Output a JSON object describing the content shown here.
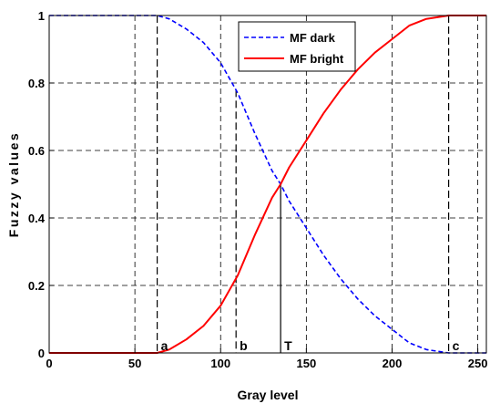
{
  "chart_data": {
    "type": "line",
    "title": "",
    "xlabel": "Gray level",
    "ylabel": "Fuzzy values",
    "xlim": [
      0,
      255
    ],
    "ylim": [
      0,
      1
    ],
    "xticks": [
      0,
      50,
      100,
      150,
      200,
      250
    ],
    "yticks": [
      0,
      0.2,
      0.4,
      0.6,
      0.8,
      1
    ],
    "ytick_labels": [
      "0",
      "0.2",
      "0.4",
      "0.6",
      "0.8",
      "1"
    ],
    "grid": true,
    "legend_position": "top-center",
    "series": [
      {
        "name": "MF dark",
        "color": "#0000ff",
        "style": "dashed",
        "x": [
          0,
          63,
          70,
          80,
          90,
          100,
          110,
          120,
          130,
          135,
          140,
          150,
          160,
          170,
          180,
          190,
          200,
          210,
          220,
          233,
          255
        ],
        "y": [
          1,
          1,
          0.99,
          0.96,
          0.92,
          0.86,
          0.77,
          0.65,
          0.54,
          0.5,
          0.45,
          0.37,
          0.29,
          0.22,
          0.16,
          0.11,
          0.07,
          0.03,
          0.01,
          0,
          0
        ]
      },
      {
        "name": "MF bright",
        "color": "#ff0000",
        "style": "solid",
        "x": [
          0,
          63,
          70,
          80,
          90,
          100,
          110,
          120,
          130,
          135,
          140,
          150,
          160,
          170,
          180,
          190,
          200,
          210,
          220,
          233,
          255
        ],
        "y": [
          0,
          0,
          0.01,
          0.04,
          0.08,
          0.14,
          0.23,
          0.35,
          0.46,
          0.5,
          0.55,
          0.63,
          0.71,
          0.78,
          0.84,
          0.89,
          0.93,
          0.97,
          0.99,
          1,
          1
        ]
      }
    ],
    "markers": [
      {
        "label": "a",
        "x": 63,
        "y_top": 1
      },
      {
        "label": "b",
        "x": 109,
        "y_top": 0.78
      },
      {
        "label": "T",
        "x": 135,
        "y_top": 0.5
      },
      {
        "label": "c",
        "x": 233,
        "y_top": 1
      }
    ]
  }
}
